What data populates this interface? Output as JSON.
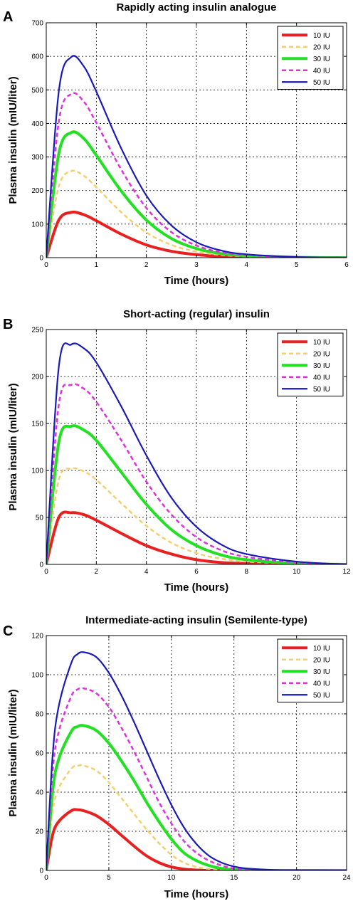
{
  "chart_data": [
    {
      "type": "line",
      "panel_label": "A",
      "title": "Rapidly acting insulin analogue",
      "xlabel": "Time (hours)",
      "ylabel": "Plasma insulin (mIU/liter)",
      "xlim": [
        0,
        6
      ],
      "ylim": [
        0,
        700
      ],
      "xticks": [
        0,
        1,
        2,
        3,
        4,
        5,
        6
      ],
      "yticks": [
        0,
        100,
        200,
        300,
        400,
        500,
        600,
        700
      ],
      "grid": true,
      "legend": "top-right",
      "x": [
        0,
        0.25,
        0.5,
        0.75,
        1,
        1.5,
        2,
        2.5,
        3,
        3.5,
        4,
        5,
        6
      ],
      "series": [
        {
          "name": "10 IU",
          "color": "#e82020",
          "style": "solid",
          "width": 4,
          "values": [
            0,
            112,
            135,
            128,
            110,
            70,
            38,
            19,
            9,
            4,
            2,
            0,
            0
          ]
        },
        {
          "name": "20 IU",
          "color": "#f5cf6e",
          "style": "dashed",
          "width": 2.5,
          "values": [
            0,
            212,
            258,
            244,
            210,
            135,
            75,
            38,
            18,
            8,
            4,
            1,
            0
          ]
        },
        {
          "name": "30 IU",
          "color": "#22e022",
          "style": "solid",
          "width": 4,
          "values": [
            0,
            310,
            373,
            355,
            305,
            198,
            112,
            57,
            27,
            12,
            6,
            1,
            0
          ]
        },
        {
          "name": "40 IU",
          "color": "#e030e0",
          "style": "dashed",
          "width": 2.5,
          "values": [
            0,
            405,
            488,
            465,
            402,
            262,
            148,
            76,
            36,
            16,
            8,
            1,
            0
          ]
        },
        {
          "name": "50 IU",
          "color": "#1a1ab8",
          "style": "solid",
          "width": 2.2,
          "values": [
            0,
            495,
            598,
            570,
            495,
            325,
            185,
            96,
            46,
            21,
            10,
            2,
            0
          ]
        }
      ]
    },
    {
      "type": "line",
      "panel_label": "B",
      "title": "Short-acting (regular) insulin",
      "xlabel": "Time (hours)",
      "ylabel": "Plasma insulin (mIU/liter)",
      "xlim": [
        0,
        12
      ],
      "ylim": [
        0,
        250
      ],
      "xticks": [
        0,
        2,
        4,
        6,
        8,
        10,
        12
      ],
      "yticks": [
        0,
        50,
        100,
        150,
        200,
        250
      ],
      "grid": true,
      "legend": "top-right",
      "x": [
        0,
        0.5,
        1,
        1.5,
        2,
        3,
        4,
        5,
        6,
        7,
        8,
        10,
        12
      ],
      "series": [
        {
          "name": "10 IU",
          "color": "#e82020",
          "style": "solid",
          "width": 4,
          "values": [
            0,
            50,
            55,
            53,
            47,
            33,
            20,
            11,
            5,
            2,
            1,
            0,
            0
          ]
        },
        {
          "name": "20 IU",
          "color": "#f5cf6e",
          "style": "dashed",
          "width": 2.5,
          "values": [
            0,
            90,
            102,
            99,
            90,
            65,
            41,
            23,
            12,
            6,
            3,
            1,
            0
          ]
        },
        {
          "name": "30 IU",
          "color": "#22e022",
          "style": "solid",
          "width": 4,
          "values": [
            0,
            130,
            147,
            143,
            132,
            98,
            64,
            37,
            20,
            10,
            5,
            1,
            0
          ]
        },
        {
          "name": "40 IU",
          "color": "#e030e0",
          "style": "dashed",
          "width": 2.5,
          "values": [
            0,
            170,
            191,
            187,
            173,
            132,
            88,
            53,
            29,
            15,
            8,
            2,
            0
          ]
        },
        {
          "name": "50 IU",
          "color": "#1a1ab8",
          "style": "solid",
          "width": 2.2,
          "values": [
            0,
            210,
            234,
            230,
            215,
            168,
            116,
            71,
            40,
            21,
            11,
            3,
            0
          ]
        }
      ]
    },
    {
      "type": "line",
      "panel_label": "C",
      "title": "Intermediate-acting insulin (Semilente-type)",
      "xlabel": "Time (hours)",
      "ylabel": "Plasma insulin (mIU/liter)",
      "xlim": [
        0,
        24
      ],
      "ylim": [
        0,
        120
      ],
      "xticks": [
        0,
        5,
        10,
        15,
        20,
        24
      ],
      "yticks": [
        0,
        20,
        40,
        60,
        80,
        100,
        120
      ],
      "grid": true,
      "legend": "top-right",
      "x": [
        0,
        0.5,
        1,
        2,
        2.5,
        3,
        4,
        5,
        6,
        7,
        8,
        9,
        10,
        11,
        12,
        13,
        14,
        15,
        16,
        18,
        20,
        24
      ],
      "series": [
        {
          "name": "10 IU",
          "color": "#e82020",
          "style": "solid",
          "width": 4,
          "values": [
            0,
            18,
            25,
            30.5,
            31,
            30.5,
            28,
            23.5,
            18,
            12.5,
            7.5,
            4,
            1.8,
            0.7,
            0.2,
            0,
            0,
            0,
            0,
            0,
            0,
            0
          ]
        },
        {
          "name": "20 IU",
          "color": "#f5cf6e",
          "style": "dashed",
          "width": 2.5,
          "values": [
            0,
            30,
            42,
            52,
            53.5,
            53.5,
            51,
            45,
            37,
            29,
            21,
            14,
            8,
            4,
            1.8,
            0.8,
            0.3,
            0,
            0,
            0,
            0,
            0
          ]
        },
        {
          "name": "30 IU",
          "color": "#22e022",
          "style": "solid",
          "width": 4,
          "values": [
            0,
            40,
            57,
            71,
            73.5,
            74,
            71.5,
            65,
            56,
            46,
            35,
            25,
            16,
            9,
            5,
            2.5,
            1,
            0.4,
            0.2,
            0,
            0,
            0
          ]
        },
        {
          "name": "40 IU",
          "color": "#e030e0",
          "style": "dashed",
          "width": 2.5,
          "values": [
            0,
            50,
            71,
            89,
            92.5,
            93,
            90.5,
            83.5,
            73,
            61,
            48,
            35,
            24,
            15,
            9,
            5,
            2.5,
            1,
            0.5,
            0.1,
            0,
            0
          ]
        },
        {
          "name": "50 IU",
          "color": "#1a1ab8",
          "style": "solid",
          "width": 2.2,
          "values": [
            0,
            58,
            84,
            106,
            110.5,
            111.5,
            109,
            101,
            89.5,
            76,
            61.5,
            47,
            33.5,
            22,
            13.5,
            7.5,
            4,
            2,
            1,
            0.3,
            0.1,
            0
          ]
        }
      ]
    }
  ]
}
